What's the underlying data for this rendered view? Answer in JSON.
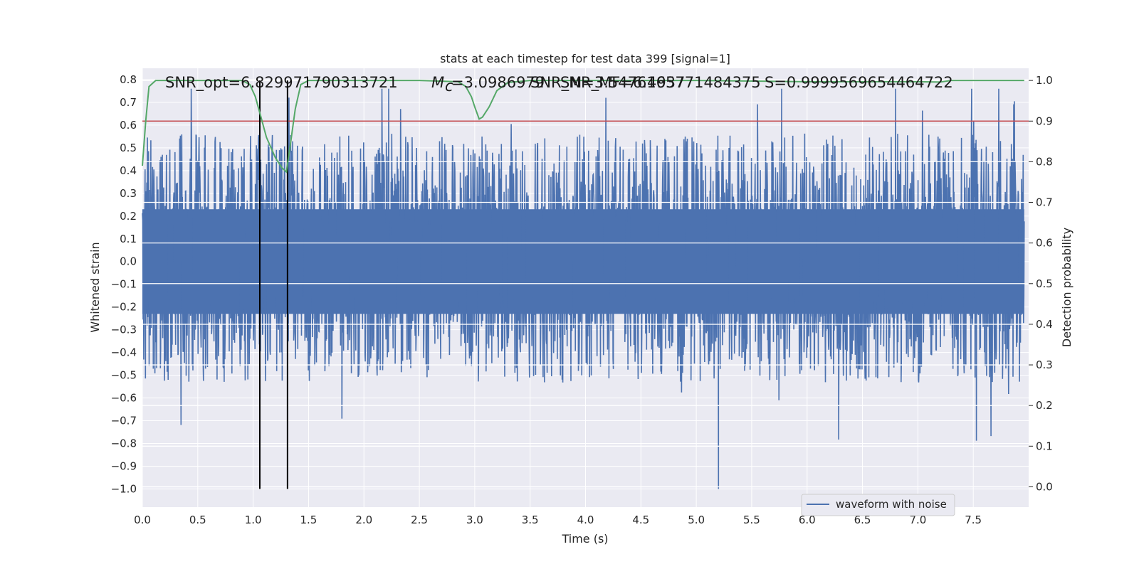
{
  "chart_data": {
    "type": "line",
    "title": "stats at each timestep for test data 399 [signal=1]",
    "xlabel": "Time (s)",
    "ylabel": "Whitened strain",
    "y2label": "Detection probability",
    "xlim": [
      0.0,
      8.0
    ],
    "ylim": [
      -1.08,
      0.85
    ],
    "y2lim": [
      -0.05,
      1.03
    ],
    "xticks": [
      "0.0",
      "0.5",
      "1.0",
      "1.5",
      "2.0",
      "2.5",
      "3.0",
      "3.5",
      "4.0",
      "4.5",
      "5.0",
      "5.5",
      "6.0",
      "6.5",
      "7.0",
      "7.5"
    ],
    "yticks": [
      "0.8",
      "0.7",
      "0.6",
      "0.5",
      "0.4",
      "0.3",
      "0.2",
      "0.1",
      "0.0",
      "-0.1",
      "-0.2",
      "-0.3",
      "-0.4",
      "-0.5",
      "-0.6",
      "-0.7",
      "-0.8",
      "-0.9",
      "-1.0"
    ],
    "y2ticks": [
      "0.0",
      "0.1",
      "0.2",
      "0.3",
      "0.4",
      "0.5",
      "0.6",
      "0.7",
      "0.8",
      "0.9",
      "1.0"
    ],
    "grid": true,
    "legend_position": "lower-right",
    "annotations": [
      "SNR_opt=6.829971790313721",
      "M",
      "c",
      "=3.0986979",
      "SNR_M=3.5476165771484375",
      "SNR_MF=6.4937",
      "S=0.9999569654464722"
    ],
    "threshold": 0.9,
    "markers_x": [
      1.06,
      1.31
    ],
    "series": [
      {
        "name": "waveform with noise",
        "color": "#4c72b0",
        "axis": "left",
        "description_values": {
          "x_start": 0.0,
          "x_end": 7.96,
          "typical_envelope": [
            -0.38,
            0.45
          ],
          "max_peak": 0.76,
          "max_peak_x": 5.77,
          "min_peak": -1.0,
          "min_peak_x": 5.2
        }
      },
      {
        "name": "",
        "color": "#55a868",
        "axis": "right",
        "x": [
          0.0,
          0.03,
          0.06,
          0.12,
          0.2,
          0.5,
          0.9,
          0.97,
          1.02,
          1.06,
          1.12,
          1.2,
          1.26,
          1.3,
          1.34,
          1.38,
          1.43,
          1.5,
          1.7,
          2.5,
          2.85,
          2.92,
          2.97,
          3.0,
          3.04,
          3.07,
          3.13,
          3.2,
          3.3,
          3.5,
          4.0,
          5.0,
          6.0,
          7.0,
          7.2,
          7.3,
          7.5,
          7.96
        ],
        "y": [
          0.79,
          0.9,
          0.985,
          1.0,
          1.0,
          1.0,
          1.0,
          0.99,
          0.96,
          0.92,
          0.86,
          0.81,
          0.785,
          0.775,
          0.85,
          0.93,
          0.99,
          1.0,
          1.0,
          1.0,
          0.997,
          0.985,
          0.96,
          0.935,
          0.905,
          0.91,
          0.935,
          0.975,
          0.995,
          1.0,
          1.0,
          1.0,
          0.997,
          0.997,
          0.996,
          1.0,
          1.0,
          1.0
        ]
      }
    ]
  }
}
